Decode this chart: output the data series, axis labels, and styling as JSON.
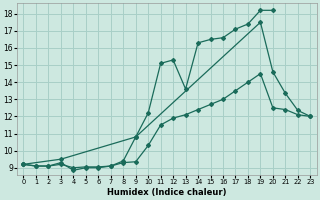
{
  "xlabel": "Humidex (Indice chaleur)",
  "bg_color": "#cde8e0",
  "grid_color": "#a8cfc7",
  "line_color": "#1a6b5a",
  "xlim": [
    -0.5,
    23.5
  ],
  "ylim": [
    8.6,
    18.6
  ],
  "yticks": [
    9,
    10,
    11,
    12,
    13,
    14,
    15,
    16,
    17,
    18
  ],
  "xticks": [
    0,
    1,
    2,
    3,
    4,
    5,
    6,
    7,
    8,
    9,
    10,
    11,
    12,
    13,
    14,
    15,
    16,
    17,
    18,
    19,
    20,
    21,
    22,
    23
  ],
  "line1_x": [
    0,
    1,
    2,
    3,
    4,
    5,
    6,
    7,
    8,
    9,
    10,
    11,
    12,
    13,
    14,
    15,
    16,
    17,
    18,
    19,
    20
  ],
  "line1_y": [
    9.2,
    9.1,
    9.1,
    9.3,
    8.85,
    9.0,
    9.0,
    9.1,
    9.4,
    10.8,
    12.2,
    15.1,
    15.3,
    13.6,
    16.3,
    16.5,
    16.6,
    17.1,
    17.4,
    18.2,
    18.2
  ],
  "line2_x": [
    0,
    1,
    2,
    3,
    4,
    5,
    6,
    7,
    8,
    9,
    10,
    11,
    12,
    13,
    14,
    15,
    16,
    17,
    18,
    19,
    20,
    21,
    22,
    23
  ],
  "line2_y": [
    9.2,
    9.1,
    9.1,
    9.2,
    9.0,
    9.05,
    9.05,
    9.1,
    9.3,
    9.35,
    10.3,
    11.5,
    11.9,
    12.1,
    12.4,
    12.7,
    13.0,
    13.5,
    14.0,
    14.5,
    12.5,
    12.4,
    12.1,
    12.0
  ],
  "line3_x": [
    0,
    3,
    9,
    19,
    20,
    21,
    22,
    23
  ],
  "line3_y": [
    9.2,
    9.5,
    10.8,
    17.5,
    14.6,
    13.35,
    12.35,
    12.0
  ]
}
